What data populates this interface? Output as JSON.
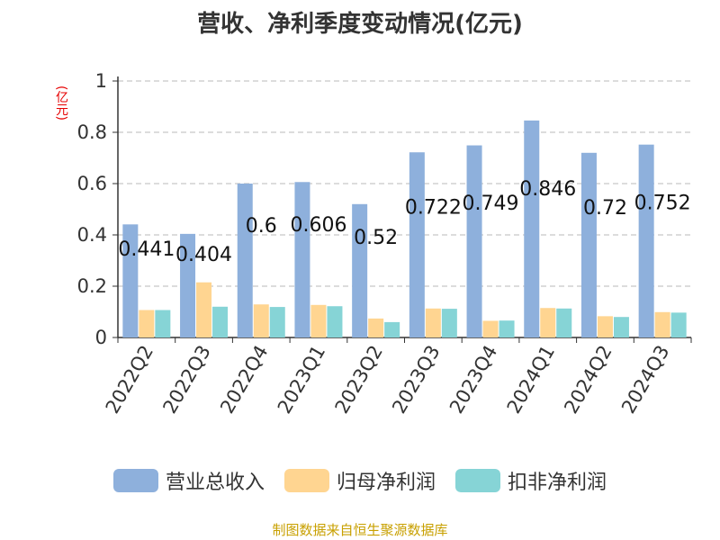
{
  "chart_data": {
    "type": "bar",
    "title": "营收、净利季度变动情况(亿元)",
    "unit_label": "(亿元)",
    "categories": [
      "2022Q2",
      "2022Q3",
      "2022Q4",
      "2023Q1",
      "2023Q2",
      "2023Q3",
      "2023Q4",
      "2024Q1",
      "2024Q2",
      "2024Q3"
    ],
    "ylim": [
      0,
      1
    ],
    "yticks": [
      "0",
      "0.2",
      "0.4",
      "0.6",
      "0.8",
      "1"
    ],
    "grid": true,
    "legend_position": "bottom",
    "series": [
      {
        "name": "营业总收入",
        "color": "#8eb0dc",
        "values": [
          0.441,
          0.404,
          0.6,
          0.606,
          0.52,
          0.722,
          0.749,
          0.846,
          0.72,
          0.752
        ],
        "labels": [
          "0.441",
          "0.404",
          "0.6",
          "0.606",
          "0.52",
          "0.722",
          "0.749",
          "0.846",
          "0.72",
          "0.752"
        ]
      },
      {
        "name": "归母净利润",
        "color": "#ffd591",
        "values": [
          0.107,
          0.215,
          0.129,
          0.127,
          0.074,
          0.113,
          0.065,
          0.115,
          0.083,
          0.099
        ]
      },
      {
        "name": "扣非净利润",
        "color": "#86d4d6",
        "values": [
          0.107,
          0.12,
          0.119,
          0.122,
          0.06,
          0.112,
          0.066,
          0.113,
          0.08,
          0.097
        ]
      }
    ]
  },
  "source": "制图数据来自恒生聚源数据库"
}
